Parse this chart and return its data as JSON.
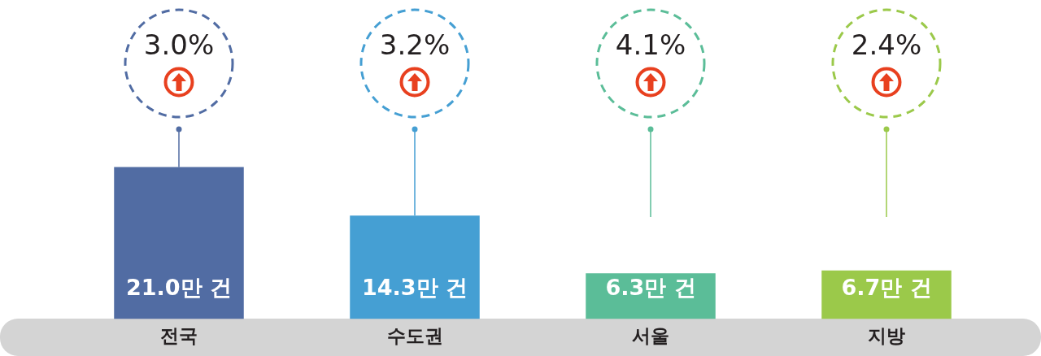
{
  "chart_data": {
    "type": "bar",
    "categories": [
      "전국",
      "수도권",
      "서울",
      "지방"
    ],
    "values": [
      21.0,
      14.3,
      6.3,
      6.7
    ],
    "colors": [
      "#516ca3",
      "#459fd3",
      "#5bbd98",
      "#9bc94a"
    ],
    "value_labels": [
      "21.0만 건",
      "14.3만 건",
      "6.3만 건",
      "6.7만 건"
    ],
    "annotations": [
      "3.0%",
      "3.2%",
      "4.1%",
      "2.4%"
    ],
    "tick_labels": "x",
    "grid": false,
    "legend": false
  }
}
